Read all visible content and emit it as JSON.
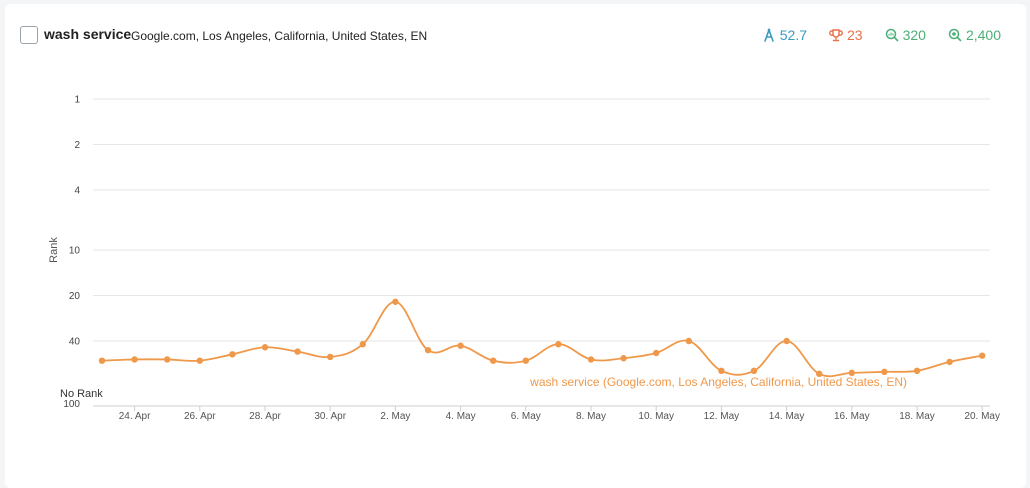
{
  "header": {
    "title": "wash service",
    "subtitle": "Google.com, Los Angeles, California, United States, EN",
    "metrics": [
      {
        "icon": "visibility-icon",
        "value": "52.7",
        "color": "#3a9bbf"
      },
      {
        "icon": "trophy-icon",
        "value": "23",
        "color": "#e8704a"
      },
      {
        "icon": "search-volume-icon",
        "value": "320",
        "color": "#4caf76"
      },
      {
        "icon": "search-results-icon",
        "value": "2,400",
        "color": "#4caf76"
      }
    ]
  },
  "chart_data": {
    "type": "line",
    "ylabel": "Rank",
    "y_scale": "log",
    "y_reversed": true,
    "y_ticks": [
      "1",
      "2",
      "4",
      "10",
      "20",
      "40"
    ],
    "y_bottom_labels": [
      "No Rank",
      "100"
    ],
    "x_tick_labels": [
      "24. Apr",
      "26. Apr",
      "28. Apr",
      "30. Apr",
      "2. May",
      "4. May",
      "6. May",
      "8. May",
      "10. May",
      "12. May",
      "14. May",
      "16. May",
      "18. May",
      "20. May"
    ],
    "grid": true,
    "series": [
      {
        "name": "wash service (Google.com, Los Angeles, California, United States, EN)",
        "color": "#f0984a",
        "x": [
          "23. Apr",
          "24. Apr",
          "25. Apr",
          "26. Apr",
          "27. Apr",
          "28. Apr",
          "29. Apr",
          "30. Apr",
          "1. May",
          "2. May",
          "3. May",
          "4. May",
          "5. May",
          "6. May",
          "7. May",
          "8. May",
          "9. May",
          "10. May",
          "11. May",
          "12. May",
          "13. May",
          "14. May",
          "15. May",
          "16. May",
          "17. May",
          "18. May",
          "19. May",
          "20. May"
        ],
        "values": [
          54,
          53,
          53,
          54,
          49,
          44,
          47,
          51,
          42,
          22,
          46,
          43,
          54,
          54,
          42,
          53,
          52,
          48,
          40,
          63,
          63,
          40,
          66,
          65,
          64,
          63,
          55,
          50
        ]
      }
    ]
  }
}
